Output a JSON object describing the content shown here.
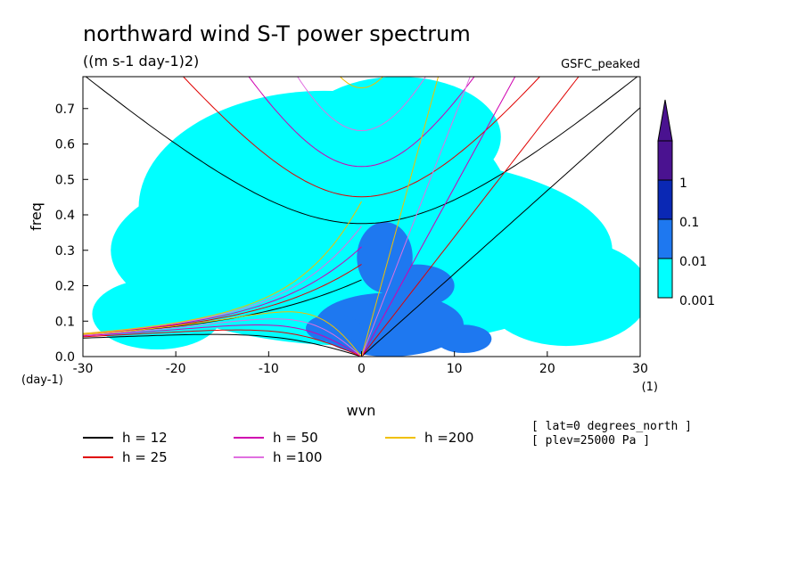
{
  "chart_data": {
    "type": "contour",
    "title": "northward wind S-T power spectrum",
    "units": "((m s-1 day-1)2)",
    "dataset": "GSFC_peaked",
    "xlabel": "wvn",
    "ylabel": "freq",
    "x_unit": "(1)",
    "y_unit": "(day-1)",
    "xlim": [
      -30,
      30
    ],
    "ylim": [
      0,
      0.79
    ],
    "x_ticks": [
      -30,
      -20,
      -10,
      0,
      10,
      20,
      30
    ],
    "x_tick_labels": [
      "-30",
      "-20",
      "-10",
      "0",
      "10",
      "20",
      "30"
    ],
    "y_ticks": [
      0,
      0.1,
      0.2,
      0.3,
      0.4,
      0.5,
      0.6,
      0.7
    ],
    "y_tick_labels": [
      "0.0",
      "0.1",
      "0.2",
      "0.3",
      "0.4",
      "0.5",
      "0.6",
      "0.7"
    ],
    "colorbar": {
      "levels": [
        "0.001",
        "0.01",
        "0.1",
        "1"
      ],
      "colors": [
        "#00ffff",
        "#1e78f0",
        "#0a28b4",
        "#4a1290"
      ]
    },
    "contour_blobs": [
      {
        "level": 1,
        "x": 0,
        "y": 0.3,
        "rx": 27,
        "ry": 0.27
      },
      {
        "level": 1,
        "x": -4,
        "y": 0.42,
        "rx": 20,
        "ry": 0.33
      },
      {
        "level": 1,
        "x": 4,
        "y": 0.62,
        "rx": 11,
        "ry": 0.17
      },
      {
        "level": 1,
        "x": 22,
        "y": 0.18,
        "rx": 9,
        "ry": 0.15
      },
      {
        "level": 1,
        "x": -22,
        "y": 0.12,
        "rx": 7,
        "ry": 0.1
      },
      {
        "level": 2,
        "x": 3,
        "y": 0.09,
        "rx": 8,
        "ry": 0.09
      },
      {
        "level": 2,
        "x": 2.5,
        "y": 0.28,
        "rx": 3,
        "ry": 0.1
      },
      {
        "level": 2,
        "x": 6,
        "y": 0.2,
        "rx": 4,
        "ry": 0.06
      },
      {
        "level": 2,
        "x": -3,
        "y": 0.08,
        "rx": 3,
        "ry": 0.04
      },
      {
        "level": 2,
        "x": 11,
        "y": 0.05,
        "rx": 3,
        "ry": 0.04
      }
    ],
    "equivalent_depths": [
      {
        "label": "h = 12",
        "h": 12,
        "color": "#000000"
      },
      {
        "label": "h = 25",
        "h": 25,
        "color": "#e00000"
      },
      {
        "label": "h = 50",
        "h": 50,
        "color": "#d000b0"
      },
      {
        "label": "h =100",
        "h": 100,
        "color": "#e070e0"
      },
      {
        "label": "h =200",
        "h": 200,
        "color": "#f0c000"
      }
    ],
    "annotations": [
      "[ lat=0 degrees_north ]",
      "[ plev=25000 Pa ]"
    ]
  }
}
